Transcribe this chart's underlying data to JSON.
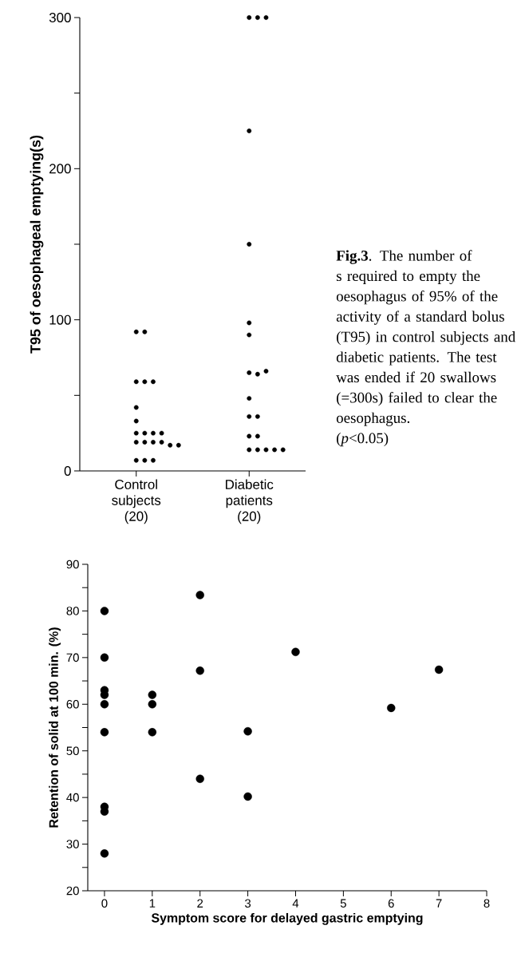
{
  "chart_data": [
    {
      "type": "scatter",
      "ylabel": "T95 of oesophageal emptying(s)",
      "categories": [
        "Control subjects (20)",
        "Diabetic patients (20)"
      ],
      "ylim": [
        0,
        300
      ],
      "yticks": [
        0,
        {
          "value": 50,
          "label": null
        },
        100,
        {
          "value": 150,
          "label": null
        },
        200,
        {
          "value": 250,
          "label": null
        },
        300
      ],
      "annotations": [
        "**Fig.3**. The number of s required to empty the oesophagus of 95% of the activity of a standard bolus (T95) in control subjects and diabetic patients. The test was ended if 20 swallows (=300s) failed to clear the oesophagus.",
        "(*p*<0.05)"
      ],
      "series": [
        {
          "color": "#000000",
          "x": [
            "Control subjects (20)",
            "Control subjects (20)",
            "Control subjects (20)",
            "Control subjects (20)",
            "Control subjects (20)",
            "Control subjects (20)",
            "Control subjects (20)",
            "Control subjects (20)",
            "Control subjects (20)",
            "Control subjects (20)",
            "Control subjects (20)",
            "Control subjects (20)",
            "Control subjects (20)",
            "Control subjects (20)",
            "Control subjects (20)",
            "Control subjects (20)",
            "Control subjects (20)",
            "Control subjects (20)",
            "Control subjects (20)",
            "Control subjects (20)"
          ],
          "values": [
            92,
            92,
            59,
            59,
            59,
            42,
            33,
            25,
            25,
            25,
            25,
            19,
            19,
            19,
            19,
            17,
            17,
            7,
            7,
            7
          ]
        },
        {
          "color": "#000000",
          "x": [
            "Diabetic patients (20)",
            "Diabetic patients (20)",
            "Diabetic patients (20)",
            "Diabetic patients (20)",
            "Diabetic patients (20)",
            "Diabetic patients (20)",
            "Diabetic patients (20)",
            "Diabetic patients (20)",
            "Diabetic patients (20)",
            "Diabetic patients (20)",
            "Diabetic patients (20)",
            "Diabetic patients (20)",
            "Diabetic patients (20)",
            "Diabetic patients (20)",
            "Diabetic patients (20)",
            "Diabetic patients (20)",
            "Diabetic patients (20)",
            "Diabetic patients (20)",
            "Diabetic patients (20)",
            "Diabetic patients (20)"
          ],
          "values": [
            300,
            300,
            300,
            225,
            150,
            98,
            90,
            65,
            64,
            66,
            48,
            36,
            36,
            23,
            23,
            14,
            14,
            14,
            14,
            14
          ]
        }
      ]
    },
    {
      "type": "scatter",
      "xlabel": "Symptom score for delayed gastric emptying",
      "ylabel": "Retention of solid at 100 min. (%)",
      "xlim": [
        -0.35,
        8
      ],
      "ylim": [
        20,
        90
      ],
      "xticks": [
        0,
        1,
        2,
        3,
        4,
        5,
        6,
        7,
        8
      ],
      "yticks": [
        20,
        {
          "value": 25,
          "label": null
        },
        30,
        {
          "value": 35,
          "label": null
        },
        40,
        {
          "value": 45,
          "label": null
        },
        50,
        {
          "value": 55,
          "label": null
        },
        60,
        {
          "value": 65,
          "label": null
        },
        70,
        {
          "value": 75,
          "label": null
        },
        80,
        {
          "value": 85,
          "label": null
        },
        90
      ],
      "series": [
        {
          "color": "#000000",
          "x": [
            0,
            0,
            0,
            0,
            0,
            0,
            0,
            0,
            0,
            1,
            1,
            1,
            2,
            2,
            2,
            3,
            3,
            4,
            6,
            7
          ],
          "values": [
            80,
            70,
            63,
            62,
            60,
            54,
            38,
            37,
            28,
            62,
            60,
            54,
            83.4,
            67.2,
            44,
            54.2,
            40.2,
            71.2,
            59.2,
            67.4
          ]
        }
      ]
    }
  ]
}
